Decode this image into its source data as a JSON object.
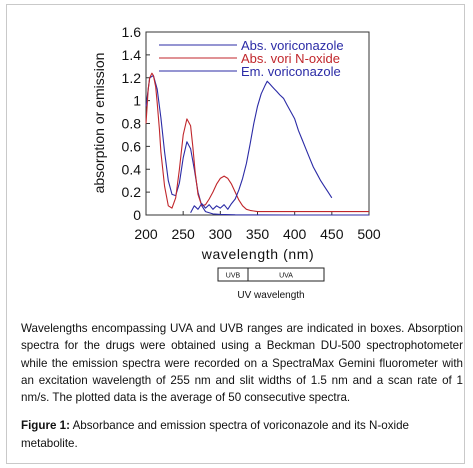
{
  "chart_data": {
    "type": "line",
    "title": "",
    "xlabel": "wavelength (nm)",
    "ylabel": "absorption or emission",
    "xlim": [
      200,
      500
    ],
    "ylim": [
      0,
      1.6
    ],
    "x_ticks": [
      "200",
      "250",
      "300",
      "350",
      "400",
      "450",
      "500"
    ],
    "y_ticks": [
      "0",
      "0.2",
      "0.4",
      "0.6",
      "0.8",
      "1",
      "1.2",
      "1.4",
      "1.6"
    ],
    "grid": false,
    "legend_position": "top-right",
    "series": [
      {
        "name": "Abs. voriconazole",
        "color": "#2b2ba6",
        "x": [
          200,
          205,
          210,
          215,
          220,
          225,
          230,
          235,
          240,
          245,
          250,
          255,
          260,
          265,
          270,
          275,
          280,
          290,
          300,
          320,
          350,
          400,
          450,
          500
        ],
        "y": [
          0.95,
          1.2,
          1.22,
          1.1,
          0.85,
          0.55,
          0.3,
          0.18,
          0.17,
          0.28,
          0.5,
          0.64,
          0.58,
          0.4,
          0.2,
          0.08,
          0.03,
          0.01,
          0.005,
          0.002,
          0.001,
          0.0,
          0.0,
          0.0
        ]
      },
      {
        "name": "Abs. vori N-oxide",
        "color": "#c0262b",
        "x": [
          200,
          203,
          205,
          208,
          210,
          213,
          215,
          218,
          220,
          225,
          230,
          235,
          240,
          245,
          250,
          255,
          260,
          263,
          266,
          270,
          275,
          280,
          285,
          290,
          295,
          300,
          305,
          310,
          315,
          320,
          325,
          330,
          335,
          340,
          345,
          350,
          360,
          380,
          400,
          450,
          500
        ],
        "y": [
          0.8,
          1.1,
          1.2,
          1.24,
          1.22,
          1.12,
          0.98,
          0.75,
          0.55,
          0.25,
          0.08,
          0.06,
          0.15,
          0.4,
          0.7,
          0.84,
          0.78,
          0.6,
          0.38,
          0.18,
          0.08,
          0.09,
          0.14,
          0.2,
          0.27,
          0.32,
          0.34,
          0.32,
          0.27,
          0.2,
          0.13,
          0.08,
          0.05,
          0.04,
          0.035,
          0.03,
          0.03,
          0.03,
          0.03,
          0.03,
          0.03
        ]
      },
      {
        "name": "Em. voriconazole",
        "color": "#2b2ba6",
        "x": [
          260,
          265,
          270,
          275,
          280,
          285,
          290,
          295,
          300,
          305,
          310,
          315,
          320,
          325,
          330,
          335,
          340,
          345,
          350,
          355,
          360,
          363,
          366,
          370,
          373,
          376,
          380,
          385,
          390,
          395,
          400,
          405,
          410,
          415,
          420,
          425,
          430,
          435,
          440,
          445,
          450
        ],
        "y": [
          0.02,
          0.08,
          0.05,
          0.1,
          0.06,
          0.09,
          0.05,
          0.08,
          0.06,
          0.09,
          0.05,
          0.1,
          0.14,
          0.22,
          0.32,
          0.45,
          0.62,
          0.8,
          0.95,
          1.06,
          1.13,
          1.17,
          1.15,
          1.12,
          1.1,
          1.08,
          1.05,
          1.02,
          0.96,
          0.9,
          0.84,
          0.74,
          0.66,
          0.58,
          0.5,
          0.42,
          0.36,
          0.3,
          0.25,
          0.2,
          0.15
        ]
      }
    ]
  },
  "uv_box": {
    "segments": [
      "UVB",
      "UVA"
    ],
    "label": "UV wavelength"
  },
  "caption": {
    "body": "Wavelengths encompassing UVA and UVB ranges are indicated in boxes. Absorption spectra for the drugs were obtained using a Beckman DU-500 spectrophotometer while the emission spectra were recorded on a SpectraMax Gemini fluorometer with an excitation wavelength of 255 nm and slit widths of 1.5 nm and a scan rate of 1 nm/s. The plotted data is the average of 50 consecutive spectra.",
    "figure_label": "Figure 1:",
    "figure_title": "Absorbance and emission spectra of voriconazole and its N-oxide metabolite."
  }
}
